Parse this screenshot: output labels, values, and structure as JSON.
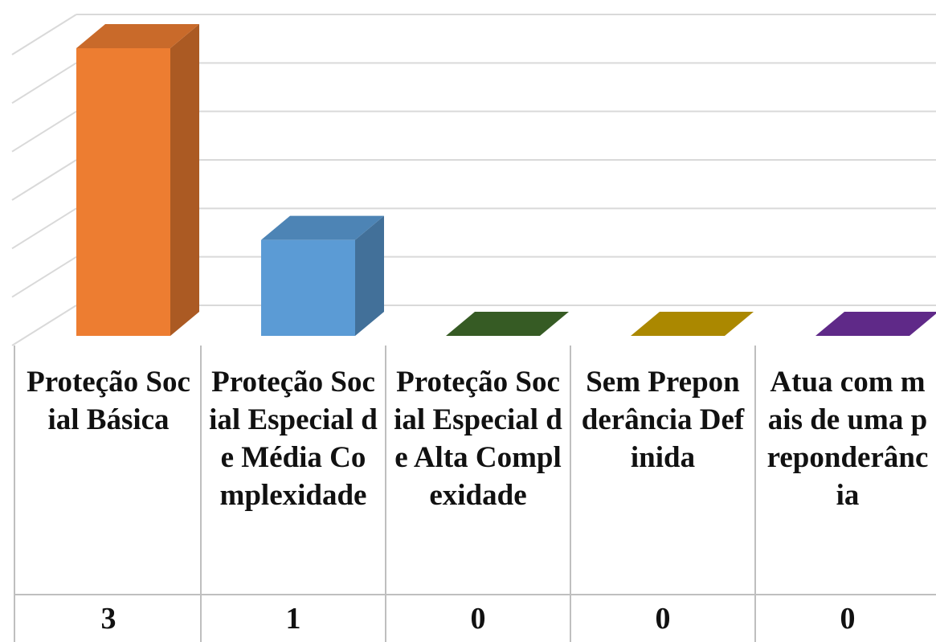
{
  "chart_data": {
    "type": "bar3d",
    "categories": [
      "Proteção Social Básica",
      "Proteção Social Especial de Média Complexidade",
      "Proteção Social Especial de Alta Complexidade",
      "Sem Preponderância Definida",
      "Atua com mais de uma preponderância"
    ],
    "values": [
      3,
      1,
      0,
      0,
      0
    ],
    "colors": [
      "#ed7d31",
      "#5b9bd5",
      "#3f6b2a",
      "#c9a000",
      "#7030a0"
    ],
    "ylim": [
      0,
      3
    ],
    "yticks": [
      0,
      0.5,
      1,
      1.5,
      2,
      2.5,
      3
    ],
    "grid": true
  }
}
